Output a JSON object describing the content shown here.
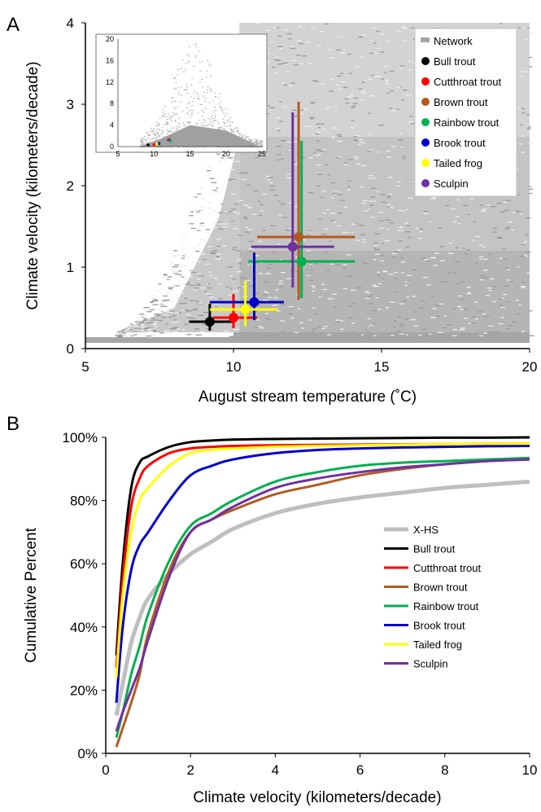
{
  "panels": {
    "a": {
      "letter": "A",
      "xlabel": "August stream temperature (˚C)",
      "ylabel": "Climate velocity (kilometers/decade)",
      "xticks": [
        "5",
        "10",
        "15",
        "20"
      ],
      "yticks": [
        "0",
        "1",
        "2",
        "3",
        "4"
      ],
      "legend": [
        "Network",
        "Bull trout",
        "Cutthroat trout",
        "Brown trout",
        "Rainbow trout",
        "Brook trout",
        "Tailed frog",
        "Sculpin"
      ],
      "inset": {
        "xticks": [
          "5",
          "10",
          "15",
          "20",
          "25"
        ],
        "yticks": [
          "0",
          "4",
          "8",
          "12",
          "16",
          "20"
        ]
      }
    },
    "b": {
      "letter": "B",
      "xlabel": "Climate velocity (kilometers/decade)",
      "ylabel": "Cumulative Percent",
      "xticks": [
        "0",
        "2",
        "4",
        "6",
        "8",
        "10"
      ],
      "yticks": [
        "0%",
        "20%",
        "40%",
        "60%",
        "80%",
        "100%"
      ],
      "legend": [
        "X-HS",
        "Bull trout",
        "Cutthroat trout",
        "Brown trout",
        "Rainbow trout",
        "Brook trout",
        "Tailed frog",
        "Sculpin"
      ]
    }
  },
  "chart_data": [
    {
      "panel": "A",
      "type": "scatter",
      "xlabel": "August stream temperature (˚C)",
      "ylabel": "Climate velocity (kilometers/decade)",
      "xlim": [
        5,
        20
      ],
      "ylim": [
        0,
        4
      ],
      "grid": false,
      "legend_position": "top-right",
      "background_series": {
        "name": "Network",
        "color": "#a6a6a6",
        "description_values": "dense cloud of stream segments"
      },
      "series": [
        {
          "name": "Bull trout",
          "color": "#000000",
          "x": 9.2,
          "y": 0.33,
          "x_range": [
            8.5,
            10.0
          ],
          "y_range": [
            0.22,
            0.55
          ]
        },
        {
          "name": "Cutthroat trout",
          "color": "#ff0000",
          "x": 10.0,
          "y": 0.38,
          "x_range": [
            9.3,
            10.8
          ],
          "y_range": [
            0.25,
            0.67
          ]
        },
        {
          "name": "Brown trout",
          "color": "#b35a1f",
          "x": 12.2,
          "y": 1.37,
          "x_range": [
            10.8,
            14.1
          ],
          "y_range": [
            0.6,
            3.03
          ]
        },
        {
          "name": "Rainbow trout",
          "color": "#00b050",
          "x": 12.3,
          "y": 1.07,
          "x_range": [
            10.5,
            14.1
          ],
          "y_range": [
            0.62,
            2.55
          ]
        },
        {
          "name": "Brook trout",
          "color": "#0000cc",
          "x": 10.7,
          "y": 0.57,
          "x_range": [
            9.2,
            11.7
          ],
          "y_range": [
            0.35,
            1.18
          ]
        },
        {
          "name": "Tailed frog",
          "color": "#ffff00",
          "x": 10.4,
          "y": 0.48,
          "x_range": [
            9.2,
            11.5
          ],
          "y_range": [
            0.27,
            0.83
          ]
        },
        {
          "name": "Sculpin",
          "color": "#7030a0",
          "x": 12.0,
          "y": 1.25,
          "x_range": [
            10.6,
            13.4
          ],
          "y_range": [
            0.75,
            2.9
          ]
        }
      ],
      "inset": {
        "xlim": [
          5,
          25
        ],
        "ylim": [
          0,
          20
        ],
        "xticks": [
          5,
          10,
          15,
          20,
          25
        ],
        "yticks": [
          0,
          4,
          8,
          12,
          16,
          20
        ]
      }
    },
    {
      "panel": "B",
      "type": "line",
      "xlabel": "Climate velocity (kilometers/decade)",
      "ylabel": "Cumulative Percent",
      "xlim": [
        0,
        10
      ],
      "ylim": [
        0,
        100
      ],
      "grid": false,
      "legend_position": "right",
      "x": [
        0.25,
        0.4,
        0.6,
        0.8,
        1.0,
        1.5,
        2.0,
        2.5,
        3,
        4,
        5,
        6,
        7,
        8,
        9,
        10
      ],
      "series": [
        {
          "name": "X-HS",
          "color": "#bfbfbf",
          "values": [
            12,
            22,
            35,
            43,
            49,
            57,
            63,
            67,
            71,
            76,
            79,
            81,
            82.5,
            84,
            85,
            86
          ]
        },
        {
          "name": "Bull trout",
          "color": "#000000",
          "values": [
            31,
            60,
            84,
            92,
            94,
            97,
            98.5,
            99,
            99.3,
            99.5,
            99.6,
            99.7,
            99.8,
            99.9,
            99.9,
            100
          ]
        },
        {
          "name": "Cutthroat trout",
          "color": "#ff0000",
          "values": [
            27,
            55,
            78,
            87,
            91,
            95,
            96.5,
            97,
            97.3,
            97.5,
            97.6,
            97.7,
            97.8,
            97.9,
            98,
            98
          ]
        },
        {
          "name": "Brown trout",
          "color": "#b35a1f",
          "values": [
            2,
            8,
            16,
            25,
            38,
            58,
            70,
            74,
            77,
            82,
            85,
            88,
            90,
            91.5,
            92.5,
            93
          ]
        },
        {
          "name": "Rainbow trout",
          "color": "#00b050",
          "values": [
            5,
            13,
            25,
            34,
            44,
            61,
            72,
            76,
            80,
            86,
            89,
            91,
            92,
            92.5,
            93,
            93.5
          ]
        },
        {
          "name": "Brook trout",
          "color": "#0000cc",
          "values": [
            16,
            40,
            58,
            66,
            70,
            80,
            88,
            91,
            93,
            95,
            96,
            96.5,
            96.8,
            97,
            97.2,
            97.3
          ]
        },
        {
          "name": "Tailed frog",
          "color": "#ffff00",
          "values": [
            24,
            50,
            70,
            80,
            84,
            91,
            95,
            96,
            96.5,
            97,
            97.3,
            97.5,
            97.7,
            97.9,
            98,
            98
          ]
        },
        {
          "name": "Sculpin",
          "color": "#7030a0",
          "values": [
            7,
            13,
            20,
            27,
            36,
            56,
            70,
            74,
            78,
            84,
            87,
            89,
            90.5,
            91.5,
            92.5,
            93
          ]
        }
      ]
    }
  ]
}
